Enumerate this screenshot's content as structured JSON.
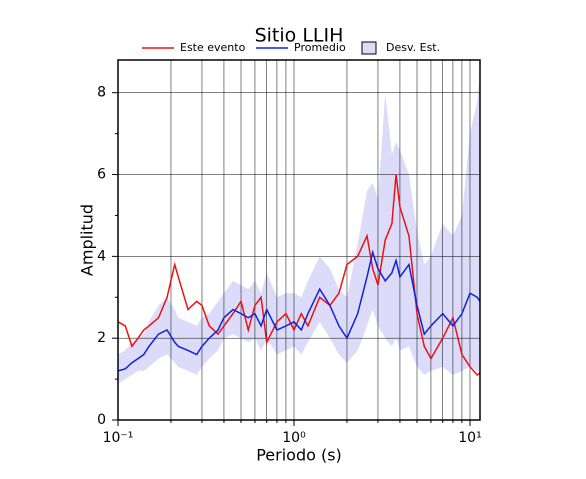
{
  "chart_data": {
    "type": "line",
    "title": "Sitio LLIH",
    "x_label": "Periodo (s)",
    "y_label": "Amplitud",
    "log_x": true,
    "grid": true,
    "xlim": [
      0.1,
      11.4
    ],
    "ylim": [
      0,
      8.8
    ],
    "xticks": [
      {
        "value": 0.1,
        "label": "10⁻¹"
      },
      {
        "value": 1,
        "label": "10⁰"
      },
      {
        "value": 10,
        "label": "10¹"
      }
    ],
    "xminorticks": [
      0.2,
      0.3,
      0.4,
      0.5,
      0.6,
      0.7,
      0.8,
      0.9,
      2,
      3,
      4,
      5,
      6,
      7,
      8,
      9
    ],
    "yticks": [
      0,
      2,
      4,
      6,
      8
    ],
    "yminorticks": [
      1,
      3,
      5,
      7
    ],
    "x": [
      0.1,
      0.11,
      0.12,
      0.13,
      0.14,
      0.15,
      0.17,
      0.19,
      0.21,
      0.22,
      0.25,
      0.28,
      0.3,
      0.33,
      0.37,
      0.4,
      0.45,
      0.5,
      0.55,
      0.6,
      0.65,
      0.7,
      0.8,
      0.9,
      1.0,
      1.1,
      1.2,
      1.4,
      1.6,
      1.8,
      2.0,
      2.3,
      2.6,
      2.8,
      3.0,
      3.3,
      3.6,
      3.8,
      4.0,
      4.5,
      5,
      5.5,
      6,
      7,
      8,
      9,
      10,
      11,
      11.4
    ],
    "series": [
      {
        "name": "Este evento",
        "color": "#ee1111",
        "values": [
          2.4,
          2.3,
          1.8,
          2.0,
          2.2,
          2.3,
          2.5,
          3.0,
          3.8,
          3.5,
          2.7,
          2.9,
          2.8,
          2.3,
          2.1,
          2.3,
          2.6,
          2.9,
          2.2,
          2.8,
          3.0,
          1.9,
          2.4,
          2.6,
          2.2,
          2.6,
          2.3,
          3.0,
          2.8,
          3.1,
          3.8,
          4.0,
          4.5,
          3.7,
          3.3,
          4.4,
          4.8,
          6.0,
          5.2,
          4.5,
          2.6,
          1.8,
          1.5,
          2.0,
          2.5,
          1.6,
          1.3,
          1.1,
          1.15
        ]
      },
      {
        "name": "Promedio",
        "color": "#1122dd",
        "values": [
          1.2,
          1.25,
          1.4,
          1.5,
          1.6,
          1.8,
          2.1,
          2.2,
          1.9,
          1.8,
          1.7,
          1.6,
          1.8,
          2.0,
          2.2,
          2.5,
          2.7,
          2.6,
          2.5,
          2.6,
          2.3,
          2.7,
          2.2,
          2.3,
          2.4,
          2.2,
          2.6,
          3.2,
          2.8,
          2.3,
          2.0,
          2.6,
          3.5,
          4.1,
          3.7,
          3.4,
          3.6,
          3.9,
          3.5,
          3.8,
          2.8,
          2.1,
          2.3,
          2.6,
          2.3,
          2.6,
          3.1,
          3.0,
          2.9
        ]
      },
      {
        "name": "Desv. Est.",
        "color": "#dcdcfa",
        "lower": [
          0.9,
          1.0,
          1.1,
          1.2,
          1.2,
          1.3,
          1.5,
          1.6,
          1.4,
          1.3,
          1.2,
          1.1,
          1.3,
          1.5,
          1.7,
          2.0,
          2.1,
          2.0,
          1.9,
          2.0,
          1.7,
          2.0,
          1.6,
          1.7,
          1.8,
          1.6,
          1.9,
          2.4,
          2.0,
          1.6,
          1.4,
          1.7,
          2.3,
          2.7,
          2.3,
          2.0,
          1.8,
          2.0,
          1.7,
          1.8,
          1.3,
          1.1,
          1.2,
          1.3,
          1.1,
          1.2,
          1.3,
          1.2,
          1.2
        ],
        "upper": [
          1.6,
          1.7,
          1.9,
          2.0,
          2.1,
          2.4,
          2.8,
          3.0,
          2.7,
          2.5,
          2.4,
          2.3,
          2.5,
          2.6,
          2.9,
          3.1,
          3.4,
          3.3,
          3.2,
          3.4,
          3.1,
          3.6,
          3.0,
          3.1,
          3.1,
          3.0,
          3.4,
          4.0,
          3.7,
          3.2,
          3.0,
          4.3,
          5.6,
          5.8,
          5.4,
          8.0,
          6.5,
          6.8,
          6.6,
          6.0,
          4.6,
          3.8,
          4.0,
          4.8,
          4.5,
          5.0,
          7.0,
          7.8,
          8.5
        ]
      }
    ]
  }
}
